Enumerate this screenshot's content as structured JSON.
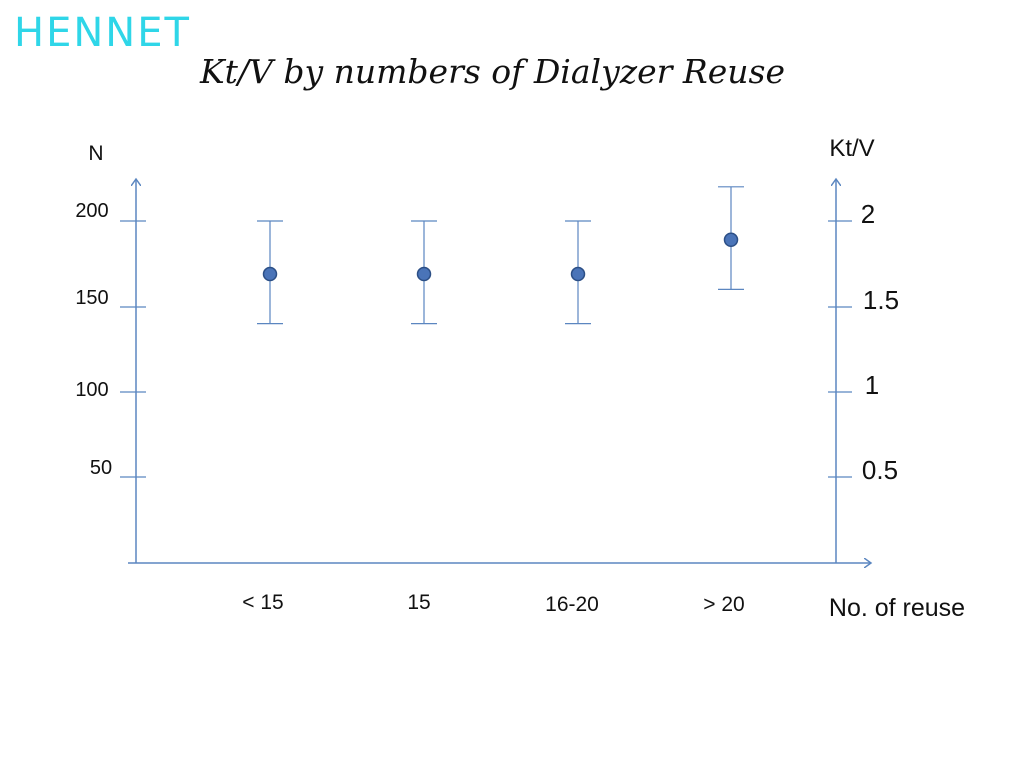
{
  "logo_text": "HENNET",
  "chart_data": {
    "type": "scatter",
    "title": "Kt/V by numbers of Dialyzer Reuse",
    "xlabel": "No. of reuse",
    "ylabel_left": "N",
    "ylabel_right": "Kt/V",
    "categories": [
      "< 15",
      "15",
      "16-20",
      "> 20"
    ],
    "left_axis": {
      "ticks": [
        200,
        150,
        100,
        50
      ],
      "range": [
        0,
        200
      ]
    },
    "right_axis": {
      "ticks": [
        "2",
        "1.5",
        "1",
        "0.5"
      ],
      "tick_values": [
        2,
        1.5,
        1,
        0.5
      ],
      "range": [
        0,
        2
      ]
    },
    "series": [
      {
        "values": [
          1.69,
          1.69,
          1.69,
          1.89
        ],
        "error_low": [
          1.4,
          1.4,
          1.4,
          1.6
        ],
        "error_high": [
          2.0,
          2.0,
          2.0,
          2.2
        ]
      }
    ],
    "colors": {
      "axis": "#5b86c0",
      "marker_fill": "#4a74b8",
      "marker_edge": "#2c4f86"
    },
    "grid": false
  }
}
